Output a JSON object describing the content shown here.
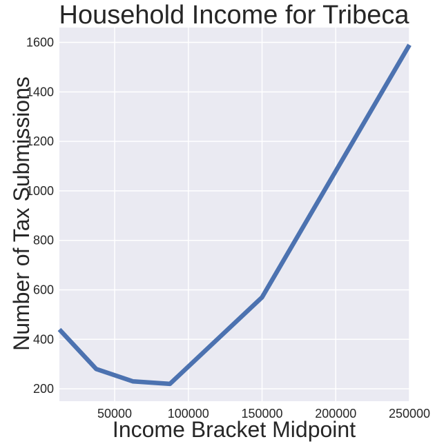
{
  "chart_data": {
    "type": "line",
    "title": "Household Income for Tribeca",
    "xlabel": "Income Bracket Midpoint",
    "ylabel": "Number of Tax Submissions",
    "xlim": [
      12500,
      250000
    ],
    "ylim": [
      150,
      1660
    ],
    "x_ticks": [
      50000,
      100000,
      150000,
      200000,
      250000
    ],
    "y_ticks": [
      200,
      400,
      600,
      800,
      1000,
      1200,
      1400,
      1600
    ],
    "grid": true,
    "series": [
      {
        "x": [
          12500,
          37500,
          62500,
          87500,
          150000,
          250000
        ],
        "y": [
          440,
          280,
          230,
          220,
          570,
          1590
        ]
      }
    ],
    "colors": {
      "line": "#4C72B0",
      "plot_background": "#EAEAF2",
      "grid": "#FFFFFF",
      "text": "#262626"
    }
  }
}
